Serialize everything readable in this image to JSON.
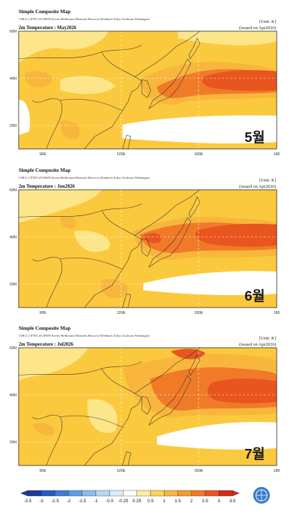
{
  "panels": [
    {
      "title": "Simple Composite Map",
      "models": "CMCC,CPTEC,ECMWF,Exeter,Melbourne,Montreal,Moscow,Offenbach,Tokyo,Toulouse,Washington",
      "unit": "[Unit: K]",
      "variable": "2m Temperature : May2026",
      "issued": "(issued on Apr2026)",
      "lat_labels": [
        "60N",
        "40N",
        "20N"
      ],
      "lon_labels": [
        "90E",
        "120E",
        "150E",
        "180"
      ],
      "month": "5월"
    },
    {
      "title": "Simple Composite Map",
      "models": "CMCC,CPTEC,ECMWF,Exeter,Melbourne,Montreal,Moscow,Offenbach,Tokyo,Toulouse,Washington",
      "unit": "[Unit: K]",
      "variable": "2m Temperature : Jun2026",
      "issued": "(issued on Apr2026)",
      "lat_labels": [
        "60N",
        "40N",
        "20N"
      ],
      "lon_labels": [
        "90E",
        "120E",
        "150E",
        "180"
      ],
      "month": "6월"
    },
    {
      "title": "Simple Composite Map",
      "models": "CMCC,CPTEC,ECMWF,Exeter,Melbourne,Montreal,Moscow,Offenbach,Tokyo,Toulouse,Washington",
      "unit": "[Unit: K]",
      "variable": "2m Temperature : Jul2026",
      "issued": "(issued on Apr2026)",
      "lat_labels": [
        "60N",
        "40N",
        "20N"
      ],
      "lon_labels": [
        "90E",
        "120E",
        "150E",
        "180"
      ],
      "month": "7월"
    }
  ],
  "colorbar": {
    "labels": [
      "-3.5",
      "-3",
      "-2.5",
      "-2",
      "-1.5",
      "-1",
      "-0.5",
      "-0.25",
      "0.25",
      "0.5",
      "1",
      "1.5",
      "2",
      "2.5",
      "3",
      "3.5"
    ],
    "colors": [
      "#1a3a9c",
      "#2458c4",
      "#3b7bd6",
      "#5f9de3",
      "#8bbcec",
      "#b5d6f4",
      "#dbeafa",
      "#ffffff",
      "#fbeea0",
      "#fbd35a",
      "#f8b73c",
      "#f59a2e",
      "#f07a28",
      "#e8551f",
      "#d42a18"
    ]
  }
}
